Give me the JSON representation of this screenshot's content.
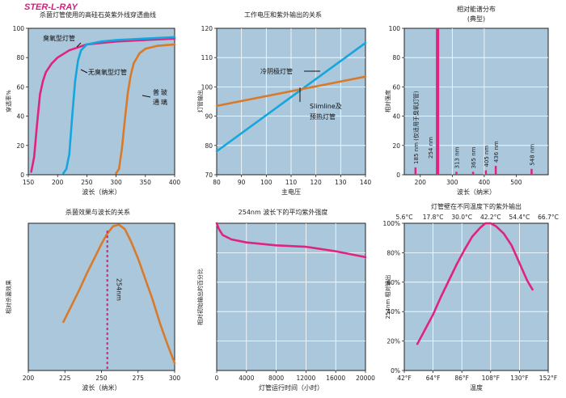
{
  "logo": "STER-L-RAY",
  "chart_data": [
    {
      "type": "line",
      "title": "杀菌灯管使用的高硅石英紫外线穿透曲线",
      "xlabel": "波长（纳米）",
      "ylabel": "穿透率%",
      "xlim": [
        150,
        400
      ],
      "ylim": [
        0,
        100
      ],
      "xticks": [
        150,
        200,
        250,
        300,
        350,
        400
      ],
      "yticks": [
        0,
        20,
        40,
        60,
        80,
        100
      ],
      "grid": false,
      "series": [
        {
          "name": "臭氧型灯管",
          "color": "#e0237e",
          "points": [
            [
              155,
              2
            ],
            [
              160,
              12
            ],
            [
              165,
              35
            ],
            [
              170,
              55
            ],
            [
              175,
              64
            ],
            [
              180,
              70
            ],
            [
              190,
              76
            ],
            [
              200,
              80
            ],
            [
              220,
              85
            ],
            [
              250,
              89
            ],
            [
              300,
              91
            ],
            [
              350,
              92
            ],
            [
              400,
              93
            ]
          ]
        },
        {
          "name": "无臭氧型灯管",
          "color": "#15a6df",
          "points": [
            [
              210,
              1
            ],
            [
              215,
              4
            ],
            [
              220,
              14
            ],
            [
              225,
              40
            ],
            [
              230,
              64
            ],
            [
              235,
              78
            ],
            [
              240,
              85
            ],
            [
              250,
              89
            ],
            [
              275,
              91
            ],
            [
              300,
              92
            ],
            [
              350,
              93
            ],
            [
              400,
              94
            ]
          ]
        },
        {
          "name": "普通玻璃",
          "color": "#d97a2b",
          "points": [
            [
              300,
              1
            ],
            [
              305,
              4
            ],
            [
              310,
              18
            ],
            [
              315,
              38
            ],
            [
              320,
              56
            ],
            [
              325,
              68
            ],
            [
              330,
              76
            ],
            [
              340,
              83
            ],
            [
              350,
              86
            ],
            [
              370,
              88
            ],
            [
              400,
              89
            ]
          ]
        }
      ]
    },
    {
      "type": "line",
      "title": "工作电压和紫外输出的关系",
      "xlabel": "主电压",
      "ylabel": "灯管输出",
      "xlim": [
        80,
        140
      ],
      "ylim": [
        70,
        120
      ],
      "xticks": [
        80,
        90,
        100,
        110,
        120,
        130,
        140
      ],
      "yticks": [
        70,
        80,
        90,
        100,
        110,
        120
      ],
      "grid": true,
      "series": [
        {
          "name": "冷阴极灯管",
          "color": "#15a6df",
          "points": [
            [
              80,
              78
            ],
            [
              140,
              115
            ]
          ]
        },
        {
          "name": "Slimline及预热灯管",
          "color": "#d97a2b",
          "points": [
            [
              80,
              93.5
            ],
            [
              140,
              103.5
            ]
          ]
        }
      ],
      "annotations": [
        "冷阴极灯管",
        "Slimline及",
        "预热灯管"
      ]
    },
    {
      "type": "bar",
      "title": "相对能谱分布",
      "subtitle": "(典型)",
      "xlabel": "波长（纳米）",
      "ylabel": "相对强度",
      "xlim": [
        150,
        600
      ],
      "ylim": [
        0,
        100
      ],
      "xticks": [
        200,
        300,
        400,
        500
      ],
      "yticks": [
        0,
        20,
        40,
        60,
        80,
        100
      ],
      "grid": true,
      "bars": [
        {
          "x": 185,
          "value": 5,
          "label": "185 nm (仅适用于臭氧灯管)"
        },
        {
          "x": 254,
          "value": 100,
          "label": "254 nm"
        },
        {
          "x": 313,
          "value": 2,
          "label": "313 nm"
        },
        {
          "x": 365,
          "value": 2,
          "label": "365 nm"
        },
        {
          "x": 405,
          "value": 3,
          "label": "405 nm"
        },
        {
          "x": 436,
          "value": 6,
          "label": "436 nm"
        },
        {
          "x": 548,
          "value": 4,
          "label": "548 nm"
        }
      ],
      "color": "#e0237e"
    },
    {
      "type": "line",
      "title": "杀菌效果与波长的关系",
      "xlabel": "波长（纳米）",
      "ylabel": "相对杀菌效果",
      "xlim": [
        200,
        300
      ],
      "ylim": [
        0,
        100
      ],
      "xticks": [
        200,
        225,
        250,
        275,
        300
      ],
      "grid": false,
      "series": [
        {
          "name": "",
          "color": "#d97a2b",
          "points": [
            [
              224,
              33
            ],
            [
              230,
              45
            ],
            [
              235,
              55
            ],
            [
              240,
              66
            ],
            [
              245,
              76
            ],
            [
              250,
              86
            ],
            [
              254,
              93
            ],
            [
              258,
              98
            ],
            [
              262,
              99
            ],
            [
              266,
              96
            ],
            [
              270,
              88
            ],
            [
              275,
              76
            ],
            [
              280,
              62
            ],
            [
              285,
              48
            ],
            [
              290,
              32
            ],
            [
              295,
              18
            ],
            [
              300,
              5
            ]
          ]
        }
      ],
      "marker_line": {
        "x": 254,
        "label": "254nm",
        "color": "#e0237e"
      }
    },
    {
      "type": "line",
      "title": "254nm 波长下的平均紫外强度",
      "xlabel": "灯管运行时间（小时）",
      "ylabel": "相对初始输出的百分比",
      "xlim": [
        0,
        20000
      ],
      "ylim": [
        0,
        100
      ],
      "xticks": [
        0,
        4000,
        8000,
        12000,
        16000,
        20000
      ],
      "grid": true,
      "series": [
        {
          "name": "",
          "color": "#e0237e",
          "points": [
            [
              0,
              100
            ],
            [
              300,
              96
            ],
            [
              800,
              92
            ],
            [
              2000,
              89
            ],
            [
              4000,
              87
            ],
            [
              8000,
              85
            ],
            [
              12000,
              84
            ],
            [
              16000,
              81
            ],
            [
              20000,
              77
            ]
          ]
        }
      ]
    },
    {
      "type": "line",
      "title": "灯管壁在不同温度下的紫外输出",
      "xlabel": "温度",
      "ylabel": "254nm 相对输出",
      "xlim": [
        42,
        152
      ],
      "ylim": [
        0,
        100
      ],
      "xticks": [
        "42°F",
        "64°F",
        "86°F",
        "108°F",
        "130°F",
        "152°F"
      ],
      "x2ticks": [
        "5.6°C",
        "17.8°C",
        "30.0°C",
        "42.2°C",
        "54.4°C",
        "66.7°C"
      ],
      "yticks": [
        "0%",
        "20%",
        "40%",
        "60%",
        "80%",
        "100%"
      ],
      "grid": true,
      "series": [
        {
          "name": "",
          "color": "#e0237e",
          "points": [
            [
              52,
              18
            ],
            [
              58,
              28
            ],
            [
              64,
              38
            ],
            [
              70,
              50
            ],
            [
              76,
              61
            ],
            [
              82,
              72
            ],
            [
              88,
              82
            ],
            [
              94,
              91
            ],
            [
              100,
              97
            ],
            [
              104,
              100
            ],
            [
              108,
              100
            ],
            [
              112,
              98
            ],
            [
              118,
              93
            ],
            [
              124,
              85
            ],
            [
              130,
              73
            ],
            [
              136,
              61
            ],
            [
              140,
              55
            ]
          ]
        }
      ]
    }
  ]
}
